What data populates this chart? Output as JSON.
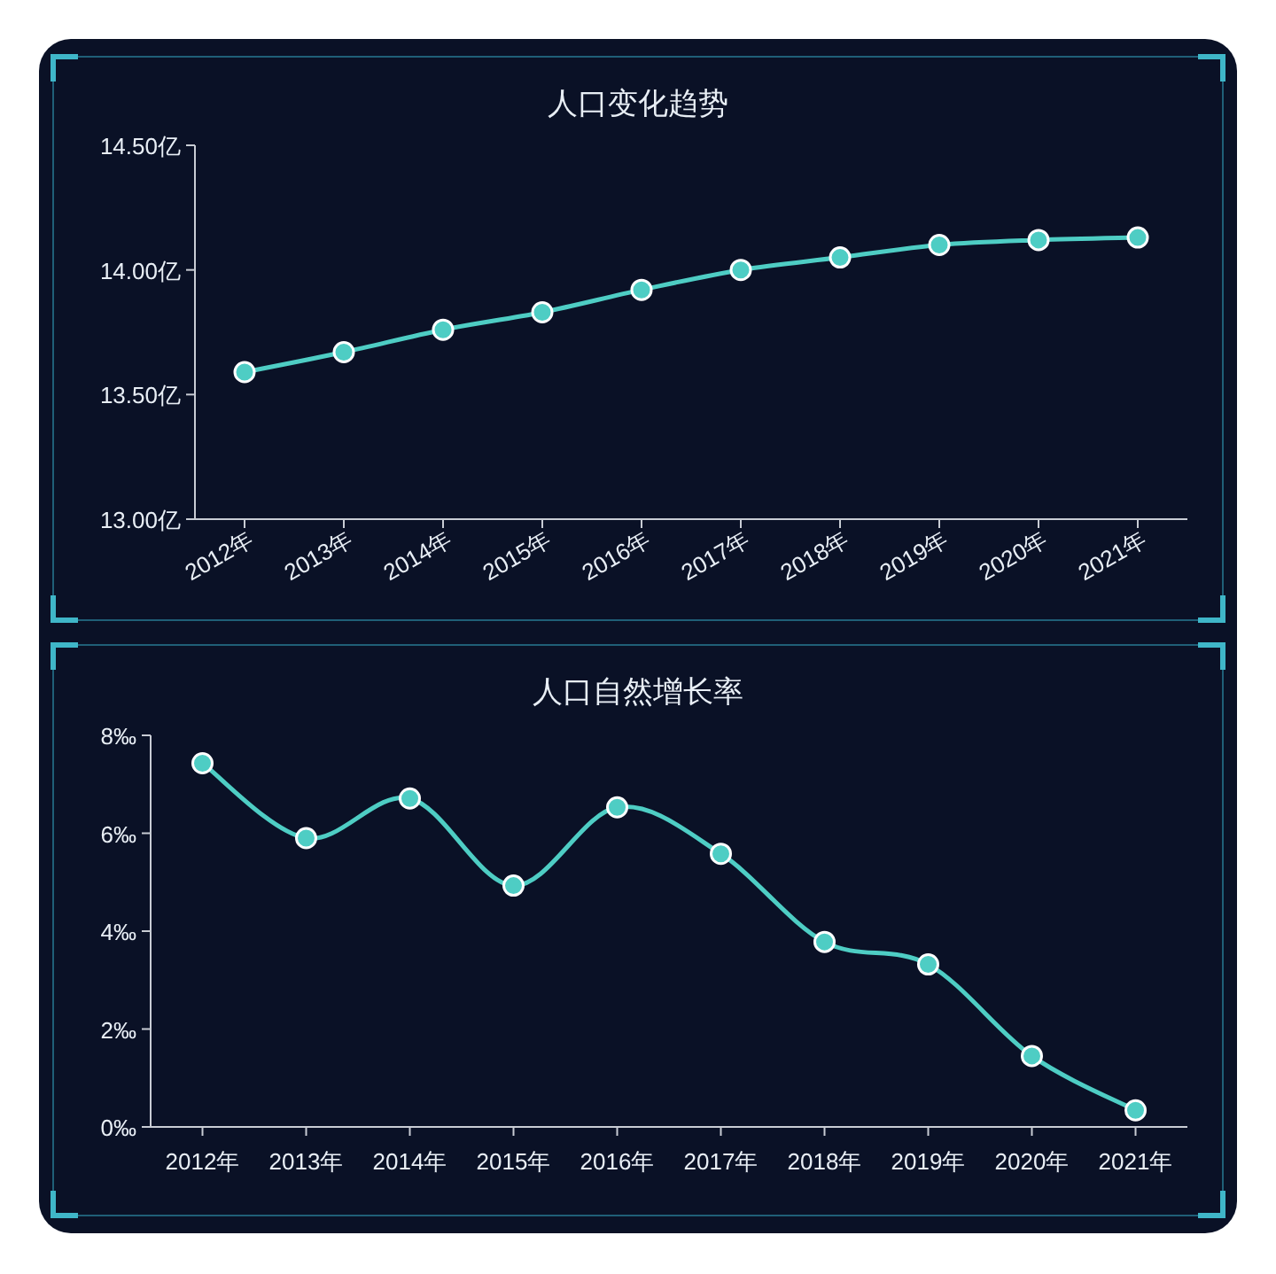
{
  "chart_data": [
    {
      "type": "line",
      "title": "人口变化趋势",
      "categories": [
        "2012年",
        "2013年",
        "2014年",
        "2015年",
        "2016年",
        "2017年",
        "2018年",
        "2019年",
        "2020年",
        "2021年"
      ],
      "series": [
        {
          "color": "#4ecdc4",
          "values": [
            13.59,
            13.67,
            13.76,
            13.83,
            13.92,
            14.0,
            14.05,
            14.1,
            14.12,
            14.13
          ]
        }
      ],
      "ylim": [
        13,
        14.5
      ],
      "yticks": [
        {
          "value": 13,
          "label": "13.00亿"
        },
        {
          "value": 13.5,
          "label": "13.50亿"
        },
        {
          "value": 14,
          "label": "14.00亿"
        },
        {
          "value": 14.5,
          "label": "14.50亿"
        }
      ],
      "marker": "circle"
    },
    {
      "type": "line",
      "title": "人口自然增长率",
      "categories": [
        "2012年",
        "2013年",
        "2014年",
        "2015年",
        "2016年",
        "2017年",
        "2018年",
        "2019年",
        "2020年",
        "2021年"
      ],
      "series": [
        {
          "color": "#4ecdc4",
          "values": [
            7.43,
            5.9,
            6.71,
            4.93,
            6.53,
            5.58,
            3.78,
            3.32,
            1.45,
            0.34
          ]
        }
      ],
      "ylim": [
        0,
        8
      ],
      "yticks": [
        {
          "value": 0,
          "label": "0‰"
        },
        {
          "value": 2,
          "label": "2‰"
        },
        {
          "value": 4,
          "label": "4‰"
        },
        {
          "value": 6,
          "label": "6‰"
        },
        {
          "value": 8,
          "label": "8‰"
        }
      ],
      "marker": "circle"
    }
  ]
}
